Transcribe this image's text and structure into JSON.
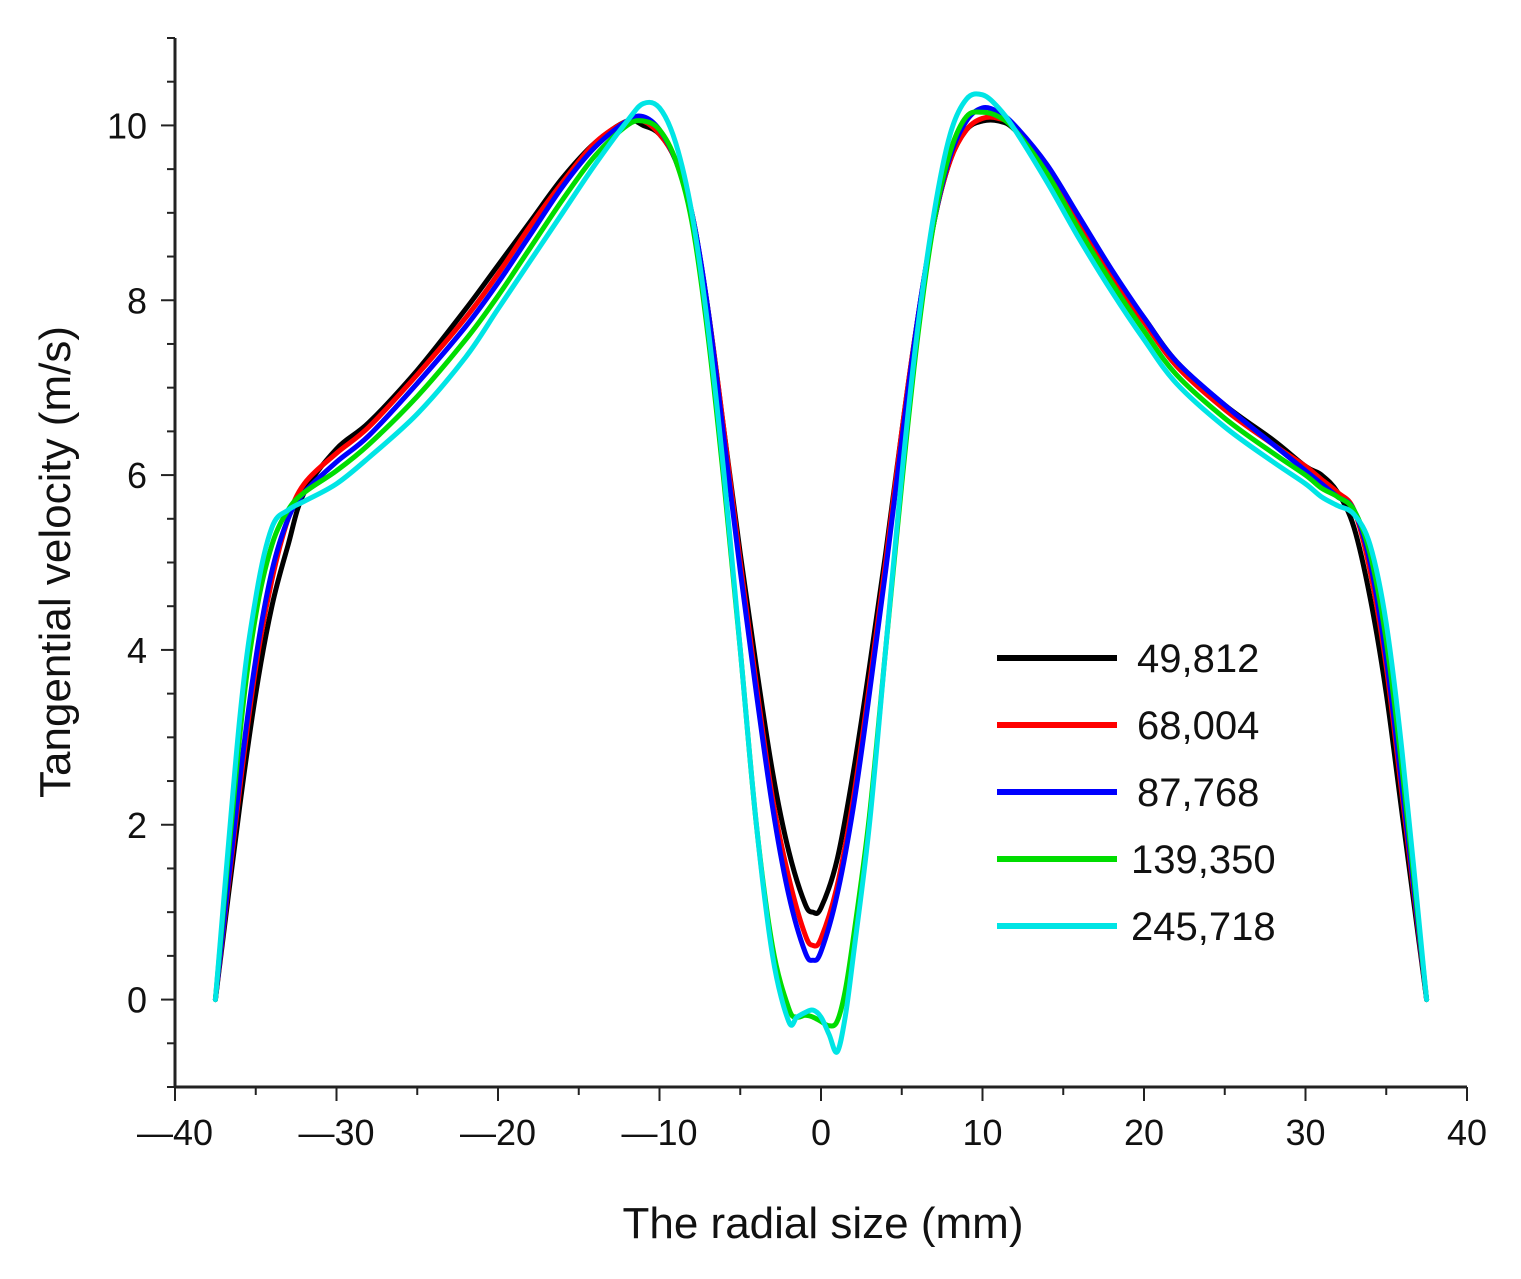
{
  "chart_data": {
    "type": "line",
    "title": "",
    "xlabel": "The radial size (mm)",
    "ylabel": "Tangential velocity (m/s)",
    "xlim": [
      -40,
      40
    ],
    "ylim": [
      -1,
      11
    ],
    "xticks": [
      -40,
      -30,
      -20,
      -10,
      0,
      10,
      20,
      30,
      40
    ],
    "xtick_labels": [
      "—40",
      "—30",
      "—20",
      "—10",
      "0",
      "10",
      "20",
      "30",
      "40"
    ],
    "yticks": [
      0,
      2,
      4,
      6,
      8,
      10
    ],
    "ytick_labels": [
      "0",
      "2",
      "4",
      "6",
      "8",
      "10"
    ],
    "grid": false,
    "legend_position": "center-right",
    "series": [
      {
        "name": "49,812",
        "color": "#000000",
        "x": [
          -37.5,
          -36,
          -35,
          -34,
          -33,
          -32,
          -30,
          -28,
          -25,
          -22,
          -20,
          -18,
          -16,
          -14,
          -12,
          -11,
          -10,
          -9,
          -8,
          -7,
          -6,
          -5,
          -4,
          -3,
          -2,
          -1,
          -0.5,
          0,
          1,
          2,
          3,
          4,
          5,
          6,
          7,
          8,
          9,
          10,
          11,
          12,
          14,
          16,
          18,
          20,
          22,
          25,
          28,
          30,
          31,
          32,
          33,
          34,
          35,
          36,
          37.5
        ],
        "y": [
          0,
          2.2,
          3.5,
          4.5,
          5.2,
          5.8,
          6.3,
          6.6,
          7.2,
          7.9,
          8.4,
          8.9,
          9.4,
          9.8,
          10.05,
          10.0,
          9.9,
          9.6,
          9.0,
          7.9,
          6.5,
          5.1,
          3.8,
          2.6,
          1.7,
          1.1,
          1.0,
          1.05,
          1.6,
          2.6,
          3.8,
          5.1,
          6.5,
          7.8,
          8.9,
          9.6,
          9.95,
          10.05,
          10.05,
          9.95,
          9.5,
          8.9,
          8.3,
          7.8,
          7.3,
          6.8,
          6.4,
          6.1,
          6.0,
          5.8,
          5.4,
          4.6,
          3.5,
          2.1,
          0
        ]
      },
      {
        "name": "68,004",
        "color": "#ff0000",
        "x": [
          -37.5,
          -36,
          -35,
          -34,
          -33,
          -32,
          -30,
          -28,
          -25,
          -22,
          -20,
          -18,
          -16,
          -14,
          -12,
          -11,
          -10,
          -9,
          -8,
          -7,
          -6,
          -5,
          -4,
          -3,
          -2,
          -1,
          -0.5,
          0,
          1,
          2,
          3,
          4,
          5,
          6,
          7,
          8,
          9,
          10,
          11,
          12,
          14,
          16,
          18,
          20,
          22,
          25,
          28,
          30,
          31,
          32,
          33,
          34,
          35,
          36,
          37.5
        ],
        "y": [
          0,
          2.4,
          3.8,
          4.8,
          5.5,
          5.9,
          6.25,
          6.55,
          7.15,
          7.8,
          8.3,
          8.85,
          9.35,
          9.8,
          10.05,
          10.05,
          9.9,
          9.6,
          9.0,
          7.9,
          6.5,
          5.0,
          3.6,
          2.3,
          1.4,
          0.75,
          0.62,
          0.7,
          1.3,
          2.3,
          3.6,
          5.0,
          6.5,
          7.8,
          8.9,
          9.6,
          9.95,
          10.08,
          10.08,
          9.98,
          9.5,
          8.85,
          8.25,
          7.75,
          7.25,
          6.75,
          6.35,
          6.1,
          5.95,
          5.8,
          5.6,
          4.9,
          3.8,
          2.3,
          0
        ]
      },
      {
        "name": "87,768",
        "color": "#0000ff",
        "x": [
          -37.5,
          -36,
          -35,
          -34,
          -33,
          -32,
          -30,
          -28,
          -25,
          -22,
          -20,
          -18,
          -16,
          -14,
          -12,
          -11,
          -10,
          -9,
          -8,
          -7,
          -6,
          -5,
          -4,
          -3,
          -2,
          -1,
          -0.5,
          0,
          1,
          2,
          3,
          4,
          5,
          6,
          7,
          8,
          9,
          10,
          11,
          12,
          14,
          16,
          18,
          20,
          22,
          25,
          28,
          30,
          31,
          32,
          33,
          34,
          35,
          36,
          37.5
        ],
        "y": [
          0,
          2.5,
          3.9,
          4.9,
          5.5,
          5.8,
          6.15,
          6.45,
          7.05,
          7.7,
          8.2,
          8.75,
          9.3,
          9.75,
          10.05,
          10.1,
          9.95,
          9.6,
          9.0,
          7.9,
          6.4,
          4.9,
          3.5,
          2.2,
          1.2,
          0.55,
          0.45,
          0.55,
          1.2,
          2.2,
          3.5,
          4.9,
          6.4,
          7.8,
          8.9,
          9.65,
          10.05,
          10.2,
          10.15,
          10.0,
          9.55,
          8.95,
          8.35,
          7.8,
          7.3,
          6.8,
          6.35,
          6.05,
          5.9,
          5.75,
          5.6,
          5.0,
          3.9,
          2.4,
          0
        ]
      },
      {
        "name": "139,350",
        "color": "#00dd00",
        "x": [
          -37.5,
          -36,
          -35,
          -34,
          -33,
          -32,
          -30,
          -28,
          -25,
          -22,
          -20,
          -18,
          -16,
          -14,
          -12,
          -11,
          -10,
          -9,
          -8,
          -7,
          -6,
          -5,
          -4,
          -3,
          -2,
          -1.5,
          -1,
          -0.5,
          0,
          0.5,
          1,
          1.5,
          2,
          3,
          4,
          5,
          6,
          7,
          8,
          9,
          10,
          11,
          12,
          14,
          16,
          18,
          20,
          22,
          25,
          28,
          30,
          31,
          32,
          33,
          34,
          35,
          36,
          37.5
        ],
        "y": [
          0,
          3.0,
          4.4,
          5.2,
          5.6,
          5.8,
          6.05,
          6.35,
          6.9,
          7.55,
          8.05,
          8.6,
          9.15,
          9.65,
          10.0,
          10.05,
          9.95,
          9.6,
          8.9,
          7.6,
          5.9,
          4.0,
          2.0,
          0.6,
          -0.1,
          -0.2,
          -0.18,
          -0.2,
          -0.25,
          -0.3,
          -0.25,
          0.1,
          0.7,
          2.1,
          4.0,
          5.9,
          7.6,
          8.9,
          9.7,
          10.1,
          10.15,
          10.1,
          9.95,
          9.45,
          8.8,
          8.2,
          7.65,
          7.15,
          6.65,
          6.25,
          6.0,
          5.85,
          5.75,
          5.6,
          5.1,
          4.1,
          2.6,
          0
        ]
      },
      {
        "name": "245,718",
        "color": "#00e5e5",
        "x": [
          -37.5,
          -36,
          -35,
          -34,
          -33,
          -32,
          -30,
          -28,
          -25,
          -22,
          -20,
          -18,
          -16,
          -14,
          -12,
          -11,
          -10,
          -9,
          -8,
          -7,
          -6,
          -5,
          -4,
          -3,
          -2,
          -1.5,
          -1,
          -0.5,
          0,
          0.5,
          1,
          1.5,
          2,
          3,
          4,
          5,
          6,
          7,
          8,
          9,
          10,
          11,
          12,
          14,
          16,
          18,
          20,
          22,
          25,
          28,
          30,
          31,
          32,
          33,
          34,
          35,
          36,
          37.5
        ],
        "y": [
          0,
          3.2,
          4.6,
          5.4,
          5.6,
          5.7,
          5.9,
          6.2,
          6.7,
          7.35,
          7.9,
          8.45,
          9.0,
          9.55,
          10.05,
          10.25,
          10.2,
          9.8,
          9.0,
          7.7,
          6.0,
          4.0,
          2.0,
          0.5,
          -0.25,
          -0.2,
          -0.15,
          -0.12,
          -0.2,
          -0.4,
          -0.6,
          -0.2,
          0.5,
          2.0,
          4.0,
          6.0,
          7.7,
          9.0,
          9.9,
          10.3,
          10.35,
          10.2,
          9.95,
          9.35,
          8.7,
          8.1,
          7.55,
          7.05,
          6.55,
          6.15,
          5.9,
          5.75,
          5.65,
          5.55,
          5.2,
          4.3,
          2.8,
          0
        ]
      }
    ]
  }
}
